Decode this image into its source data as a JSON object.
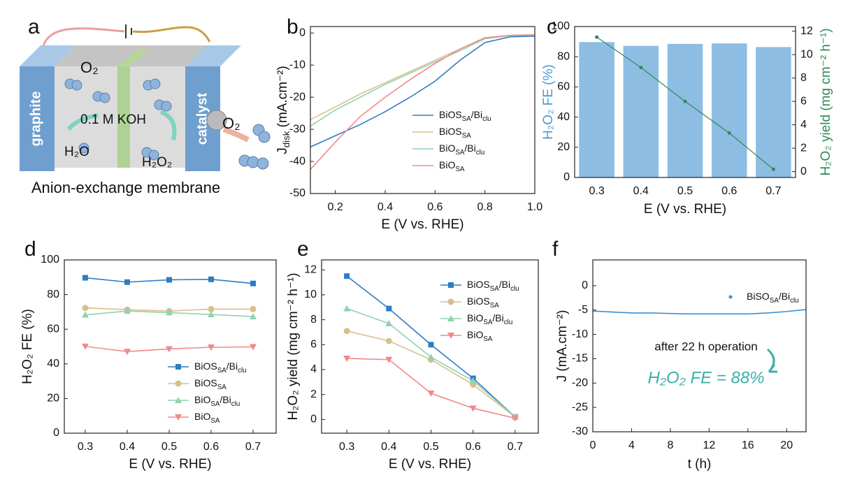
{
  "diagram": {
    "panel": "a",
    "labels": [
      "O₂",
      "graphite",
      "catalyst",
      "0.1 M KOH",
      "H₂O",
      "H₂O₂",
      "O₂",
      "Anion-exchange membrane"
    ]
  },
  "chart_data": [
    {
      "type": "line",
      "panel": "b",
      "xlabel": "E (V vs. RHE)",
      "ylabel": [
        "J",
        "disk",
        " (mA.cm⁻²)"
      ],
      "x": [
        0.1,
        0.2,
        0.3,
        0.4,
        0.5,
        0.6,
        0.7,
        0.8,
        0.9,
        1.0
      ],
      "xlim": [
        0.1,
        1.0
      ],
      "xticks": [
        0.2,
        0.4,
        0.6,
        0.8,
        {
          "value": 1.0,
          "label": "1.0"
        }
      ],
      "ylim": [
        -50,
        2
      ],
      "yticks": [
        -50,
        -40,
        -30,
        -20,
        -10,
        0
      ],
      "legend": "lower right",
      "series": [
        {
          "name": [
            "BiOS",
            "SA",
            "/Bi",
            "clu"
          ],
          "color": "#2e7cc2",
          "values": [
            -35.5,
            -32,
            -28.5,
            -24.5,
            -20,
            -15,
            -8.5,
            -3,
            -1.2,
            -1
          ]
        },
        {
          "name": [
            "BiOS",
            "SA"
          ],
          "color": "#d8bf8e",
          "values": [
            -27,
            -23,
            -19,
            -15.5,
            -12,
            -8.5,
            -5,
            -1.5,
            -0.7,
            -0.5
          ]
        },
        {
          "name": [
            "BiO",
            "SA",
            "/Bi",
            "clu"
          ],
          "color": "#8fd3b0",
          "values": [
            -29,
            -24,
            -20,
            -16,
            -12.5,
            -9,
            -5.5,
            -1.8,
            -0.8,
            -0.6
          ]
        },
        {
          "name": [
            "BiO",
            "SA"
          ],
          "color": "#f08a8a",
          "values": [
            -42.5,
            -34,
            -26,
            -20,
            -14.5,
            -9.5,
            -5,
            -1.5,
            -0.8,
            -0.6
          ]
        }
      ]
    },
    {
      "type": "combo",
      "panel": "c",
      "xlabel": "E (V vs. RHE)",
      "ylabel": "H₂O₂ FE (%)",
      "y2label": "H₂O₂ yield (mg cm⁻² h⁻¹)",
      "ylabel_color": "#4a9ad6",
      "y2label_color": "#2e8b57",
      "categories": [
        "0.3",
        "0.4",
        "0.5",
        "0.6",
        "0.7"
      ],
      "ylim": [
        0,
        100
      ],
      "yticks": [
        0,
        20,
        40,
        60,
        80,
        100
      ],
      "y2lim": [
        -0.5,
        12.4
      ],
      "y2ticks": [
        0,
        2,
        4,
        6,
        8,
        10,
        12
      ],
      "series": [
        {
          "kind": "bar",
          "color": "#8dbde3",
          "values": [
            89.7,
            87.2,
            88.5,
            88.8,
            86.4
          ]
        },
        {
          "kind": "line",
          "axis": "y2",
          "color": "#2e8b57",
          "values": [
            11.5,
            8.9,
            6.0,
            3.3,
            0.2
          ]
        }
      ]
    },
    {
      "type": "line",
      "panel": "d",
      "xlabel": "E (V vs. RHE)",
      "ylabel": "H₂O₂ FE (%)",
      "x": [
        0.3,
        0.4,
        0.5,
        0.6,
        0.7
      ],
      "xlim": [
        0.25,
        0.755
      ],
      "xticks": [
        0.3,
        0.4,
        0.5,
        0.6,
        0.7
      ],
      "ylim": [
        0,
        100
      ],
      "yticks": [
        0,
        20,
        40,
        60,
        80,
        100
      ],
      "legend": "lower right",
      "series": [
        {
          "name": [
            "BiOS",
            "SA",
            "/Bi",
            "clu"
          ],
          "color": "#2e7cc2",
          "marker": "square",
          "values": [
            89.7,
            87.2,
            88.5,
            88.8,
            86.4
          ]
        },
        {
          "name": [
            "BiOS",
            "SA"
          ],
          "color": "#d8bf8e",
          "marker": "circle",
          "values": [
            72.3,
            71.3,
            70.5,
            71.6,
            71.6
          ]
        },
        {
          "name": [
            "BiO",
            "SA",
            "/Bi",
            "clu"
          ],
          "color": "#8fd3b0",
          "marker": "triangle-up",
          "values": [
            68.3,
            70.5,
            69.6,
            68.5,
            67.3
          ]
        },
        {
          "name": [
            "BiO",
            "SA"
          ],
          "color": "#f08a8a",
          "marker": "triangle-down",
          "values": [
            50.1,
            47.1,
            48.6,
            49.6,
            49.8
          ]
        }
      ]
    },
    {
      "type": "line",
      "panel": "e",
      "xlabel": "E (V vs. RHE)",
      "ylabel": "H₂O₂ yield (mg cm⁻² h⁻¹)",
      "x": [
        0.3,
        0.4,
        0.5,
        0.6,
        0.7
      ],
      "xlim": [
        0.24,
        0.755
      ],
      "xticks": [
        0.3,
        0.4,
        0.5,
        0.6,
        0.7
      ],
      "ylim": [
        -1.1,
        12.8
      ],
      "yticks": [
        0,
        2,
        4,
        6,
        8,
        10,
        12
      ],
      "legend": "upper right",
      "series": [
        {
          "name": [
            "BiOS",
            "SA",
            "/Bi",
            "clu"
          ],
          "color": "#2e7cc2",
          "marker": "square",
          "values": [
            11.5,
            8.9,
            6.0,
            3.3,
            0.2
          ]
        },
        {
          "name": [
            "BiOS",
            "SA"
          ],
          "color": "#d8bf8e",
          "marker": "circle",
          "values": [
            7.1,
            6.3,
            4.8,
            2.8,
            0.2
          ]
        },
        {
          "name": [
            "BiO",
            "SA",
            "/Bi",
            "clu"
          ],
          "color": "#8fd3b0",
          "marker": "triangle-up",
          "values": [
            8.9,
            7.7,
            5.0,
            3.1,
            0.2
          ]
        },
        {
          "name": [
            "BiO",
            "SA"
          ],
          "color": "#f08a8a",
          "marker": "triangle-down",
          "values": [
            4.9,
            4.8,
            2.1,
            0.9,
            0.1
          ]
        }
      ]
    },
    {
      "type": "line",
      "panel": "f",
      "xlabel": "t (h)",
      "ylabel": "J (mA.cm⁻²)",
      "x": [
        0,
        2,
        4,
        6,
        8,
        10,
        12,
        14,
        16,
        18,
        20,
        22
      ],
      "xlim": [
        0,
        22
      ],
      "xticks": [
        0,
        4,
        8,
        12,
        16,
        20
      ],
      "ylim": [
        -30,
        5.3
      ],
      "yticks": [
        -30,
        -25,
        -20,
        -15,
        -10,
        -5,
        0
      ],
      "legend": "upper right",
      "annotations": [
        "after 22 h operation",
        "H₂O₂ FE = 88%"
      ],
      "series": [
        {
          "name": [
            "BiSO",
            "SA",
            "/Bi",
            "clu"
          ],
          "color": "#3a8fd6",
          "marker": "dot",
          "values": [
            -5.2,
            -5.4,
            -5.6,
            -5.6,
            -5.7,
            -5.8,
            -5.8,
            -5.8,
            -5.8,
            -5.6,
            -5.3,
            -4.9
          ]
        }
      ]
    }
  ]
}
